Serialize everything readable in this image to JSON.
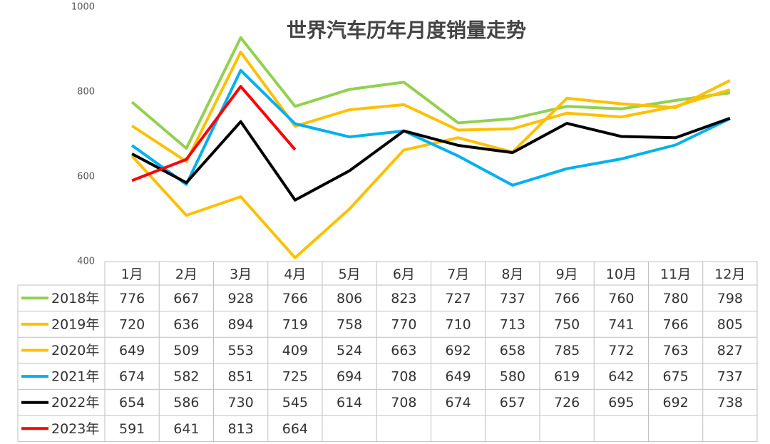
{
  "chart_data": {
    "type": "line",
    "title": "世界汽车历年月度销量走势",
    "categories": [
      "1月",
      "2月",
      "3月",
      "4月",
      "5月",
      "6月",
      "7月",
      "8月",
      "9月",
      "10月",
      "11月",
      "12月"
    ],
    "series": [
      {
        "name": "2018年",
        "color": "#92d050",
        "values": [
          776,
          667,
          928,
          766,
          806,
          823,
          727,
          737,
          766,
          760,
          780,
          798
        ]
      },
      {
        "name": "2019年",
        "color": "#ffc000",
        "values": [
          720,
          636,
          894,
          719,
          758,
          770,
          710,
          713,
          750,
          741,
          766,
          805
        ]
      },
      {
        "name": "2020年",
        "color": "#ffc000",
        "values": [
          649,
          509,
          553,
          409,
          524,
          663,
          692,
          658,
          785,
          772,
          763,
          827
        ]
      },
      {
        "name": "2021年",
        "color": "#00b0f0",
        "values": [
          674,
          582,
          851,
          725,
          694,
          708,
          649,
          580,
          619,
          642,
          675,
          737
        ]
      },
      {
        "name": "2022年",
        "color": "#000000",
        "values": [
          654,
          586,
          730,
          545,
          614,
          708,
          674,
          657,
          726,
          695,
          692,
          738
        ]
      },
      {
        "name": "2023年",
        "color": "#ff0000",
        "values": [
          591,
          641,
          813,
          664,
          null,
          null,
          null,
          null,
          null,
          null,
          null,
          null
        ]
      }
    ],
    "ylim": [
      400,
      1000
    ],
    "yticks": [
      400,
      600,
      800,
      1000
    ],
    "grid": false
  }
}
